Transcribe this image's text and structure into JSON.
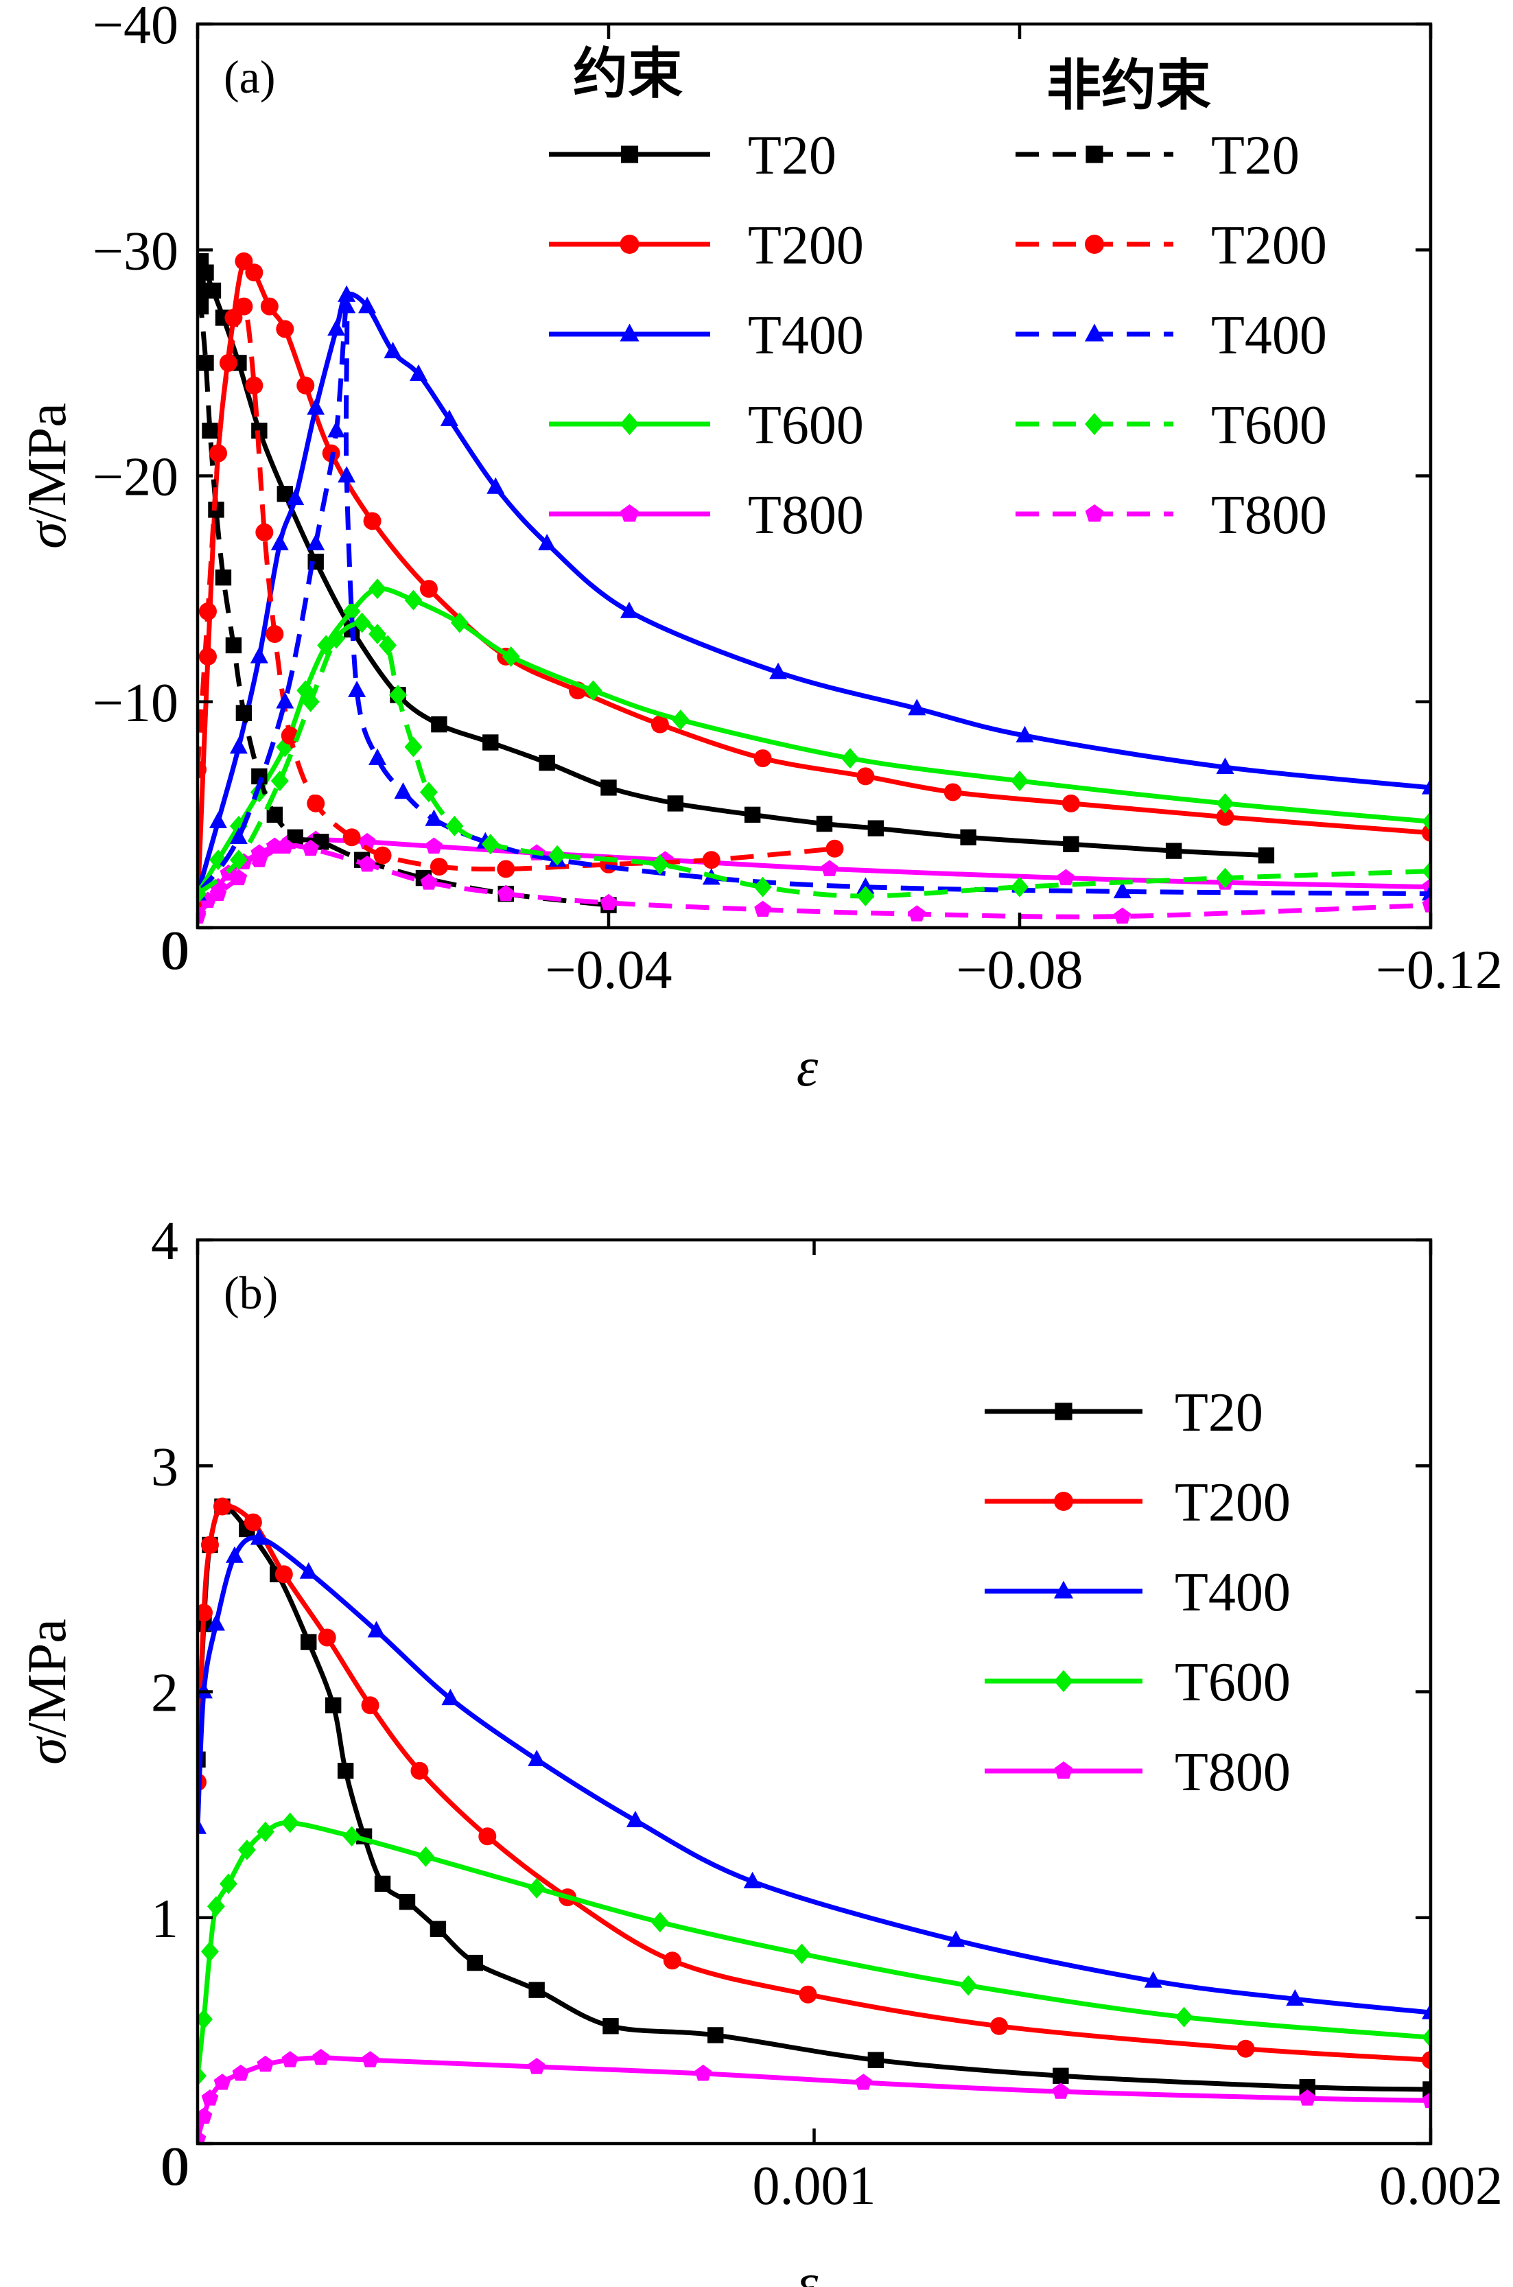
{
  "colors": {
    "T20": "#000000",
    "T200": "#ff0000",
    "T400": "#0000ff",
    "T600": "#00ee00",
    "T800": "#ff00ff"
  },
  "chart_data": [
    {
      "id": "a",
      "type": "line",
      "panel_label": "(a)",
      "xlabel": "ε",
      "ylabel": "σ/MPa",
      "xlim": [
        0,
        -0.12
      ],
      "ylim": [
        0,
        -40
      ],
      "xticks": [
        0,
        -0.04,
        -0.08,
        -0.12
      ],
      "xtick_labels": [
        "0",
        "−0.04",
        "−0.08",
        "−0.12"
      ],
      "yticks": [
        0,
        -10,
        -20,
        -30,
        -40
      ],
      "ytick_labels": [
        "0",
        "−10",
        "−20",
        "−30",
        "−40"
      ],
      "legend_position": "top-right",
      "legend_groups": [
        {
          "title": "约束",
          "style": "solid"
        },
        {
          "title": "非约束",
          "style": "dashed"
        }
      ],
      "series": [
        {
          "name": "T20",
          "group": "约束",
          "style": "solid",
          "marker": "square",
          "color_key": "T20",
          "x": [
            0,
            -0.0003,
            -0.0008,
            -0.0015,
            -0.0025,
            -0.004,
            -0.006,
            -0.0085,
            -0.0115,
            -0.015,
            -0.0195,
            -0.0235,
            -0.0285,
            -0.034,
            -0.04,
            -0.0465,
            -0.054,
            -0.061,
            -0.066,
            -0.075,
            -0.085,
            -0.095,
            -0.104
          ],
          "y": [
            -28.5,
            -29.5,
            -29.0,
            -28.2,
            -27.0,
            -25.0,
            -22.0,
            -19.2,
            -16.2,
            -13.2,
            -10.3,
            -9.0,
            -8.2,
            -7.3,
            -6.2,
            -5.5,
            -5.0,
            -4.6,
            -4.4,
            -4.0,
            -3.7,
            -3.4,
            -3.2
          ]
        },
        {
          "name": "T200",
          "group": "约束",
          "style": "solid",
          "marker": "circle",
          "color_key": "T200",
          "x": [
            0,
            -0.001,
            -0.002,
            -0.0035,
            -0.0045,
            -0.0055,
            -0.007,
            -0.0085,
            -0.0105,
            -0.013,
            -0.017,
            -0.0225,
            -0.03,
            -0.037,
            -0.045,
            -0.055,
            -0.065,
            -0.0735,
            -0.085,
            -0.1,
            -0.12
          ],
          "y": [
            -1.0,
            -12.0,
            -21.0,
            -27.0,
            -29.5,
            -29.0,
            -27.5,
            -26.5,
            -24.0,
            -21.0,
            -18.0,
            -15.0,
            -12.0,
            -10.5,
            -9.0,
            -7.5,
            -6.7,
            -6.0,
            -5.5,
            -4.9,
            -4.2
          ]
        },
        {
          "name": "T400",
          "group": "约束",
          "style": "solid",
          "marker": "triangle",
          "color_key": "T400",
          "x": [
            0,
            -0.002,
            -0.004,
            -0.006,
            -0.008,
            -0.0095,
            -0.0115,
            -0.0135,
            -0.0145,
            -0.0165,
            -0.019,
            -0.0215,
            -0.0245,
            -0.029,
            -0.034,
            -0.042,
            -0.0565,
            -0.07,
            -0.0805,
            -0.1,
            -0.12
          ],
          "y": [
            -1.5,
            -4.7,
            -8.0,
            -12.0,
            -17.0,
            -19.0,
            -23.0,
            -26.5,
            -28.0,
            -27.5,
            -25.5,
            -24.5,
            -22.5,
            -19.5,
            -17.0,
            -14.0,
            -11.3,
            -9.7,
            -8.5,
            -7.1,
            -6.2
          ]
        },
        {
          "name": "T600",
          "group": "约束",
          "style": "solid",
          "marker": "diamond",
          "color_key": "T600",
          "x": [
            0,
            -0.002,
            -0.004,
            -0.006,
            -0.0085,
            -0.0105,
            -0.0125,
            -0.015,
            -0.0175,
            -0.021,
            -0.0255,
            -0.0305,
            -0.0385,
            -0.047,
            -0.0635,
            -0.08,
            -0.1,
            -0.12
          ],
          "y": [
            -1.5,
            -3.0,
            -4.5,
            -6.0,
            -8.0,
            -10.5,
            -12.5,
            -14.0,
            -15.0,
            -14.5,
            -13.5,
            -12.0,
            -10.5,
            -9.2,
            -7.5,
            -6.5,
            -5.5,
            -4.7
          ]
        },
        {
          "name": "T800",
          "group": "约束",
          "style": "solid",
          "marker": "pentagon",
          "color_key": "T800",
          "x": [
            0,
            -0.001,
            -0.002,
            -0.003,
            -0.0045,
            -0.006,
            -0.0075,
            -0.009,
            -0.0115,
            -0.0165,
            -0.023,
            -0.033,
            -0.0455,
            -0.0615,
            -0.0845,
            -0.1,
            -0.12
          ],
          "y": [
            -0.5,
            -1.2,
            -1.8,
            -2.4,
            -2.9,
            -3.3,
            -3.6,
            -3.8,
            -3.9,
            -3.8,
            -3.6,
            -3.3,
            -3.0,
            -2.6,
            -2.2,
            -2.0,
            -1.8
          ]
        },
        {
          "name": "T20",
          "group": "非约束",
          "style": "dashed",
          "marker": "square",
          "color_key": "T20",
          "x": [
            0,
            -0.0003,
            -0.0008,
            -0.0012,
            -0.0018,
            -0.0025,
            -0.0035,
            -0.0045,
            -0.006,
            -0.0075,
            -0.0095,
            -0.012,
            -0.016,
            -0.022,
            -0.03,
            -0.04
          ],
          "y": [
            -28.0,
            -27.5,
            -25.0,
            -22.0,
            -18.5,
            -15.5,
            -12.5,
            -9.5,
            -6.7,
            -5.0,
            -4.0,
            -3.8,
            -3.0,
            -2.2,
            -1.5,
            -1.0
          ]
        },
        {
          "name": "T200",
          "group": "非约束",
          "style": "dashed",
          "marker": "circle",
          "color_key": "T200",
          "x": [
            0,
            -0.001,
            -0.002,
            -0.003,
            -0.0045,
            -0.0055,
            -0.0065,
            -0.0075,
            -0.009,
            -0.0115,
            -0.015,
            -0.018,
            -0.0235,
            -0.03,
            -0.04,
            -0.05,
            -0.062
          ],
          "y": [
            -7.0,
            -14.0,
            -21.0,
            -25.0,
            -27.5,
            -24.0,
            -17.5,
            -13.0,
            -8.5,
            -5.5,
            -4.0,
            -3.2,
            -2.7,
            -2.6,
            -2.8,
            -3.0,
            -3.5
          ]
        },
        {
          "name": "T400",
          "group": "非约束",
          "style": "dashed",
          "marker": "triangle",
          "color_key": "T400",
          "x": [
            0,
            -0.004,
            -0.0085,
            -0.0115,
            -0.0135,
            -0.0145,
            -0.0145,
            -0.0155,
            -0.0175,
            -0.02,
            -0.023,
            -0.028,
            -0.035,
            -0.05,
            -0.065,
            -0.09,
            -0.12
          ],
          "y": [
            -1.5,
            -4.0,
            -10.0,
            -17.0,
            -22.0,
            -27.5,
            -20.0,
            -10.5,
            -7.5,
            -6.0,
            -4.8,
            -3.8,
            -3.0,
            -2.2,
            -1.8,
            -1.6,
            -1.5
          ]
        },
        {
          "name": "T600",
          "group": "非约束",
          "style": "dashed",
          "marker": "diamond",
          "color_key": "T600",
          "x": [
            0,
            -0.004,
            -0.008,
            -0.011,
            -0.0135,
            -0.016,
            -0.0175,
            -0.0185,
            -0.0195,
            -0.021,
            -0.0225,
            -0.025,
            -0.0285,
            -0.035,
            -0.045,
            -0.055,
            -0.065,
            -0.08,
            -0.1,
            -0.12
          ],
          "y": [
            -1.5,
            -3.0,
            -6.5,
            -10.0,
            -12.8,
            -13.5,
            -13.0,
            -12.5,
            -10.3,
            -8.0,
            -6.0,
            -4.5,
            -3.7,
            -3.2,
            -2.8,
            -1.8,
            -1.4,
            -1.8,
            -2.2,
            -2.5
          ]
        },
        {
          "name": "T800",
          "group": "非约束",
          "style": "dashed",
          "marker": "pentagon",
          "color_key": "T800",
          "x": [
            0,
            -0.002,
            -0.004,
            -0.006,
            -0.0085,
            -0.011,
            -0.0165,
            -0.0225,
            -0.03,
            -0.04,
            -0.055,
            -0.07,
            -0.09,
            -0.12
          ],
          "y": [
            -0.6,
            -1.5,
            -2.2,
            -3.0,
            -3.6,
            -3.5,
            -2.8,
            -2.0,
            -1.5,
            -1.1,
            -0.8,
            -0.6,
            -0.5,
            -1.0
          ]
        }
      ]
    },
    {
      "id": "b",
      "type": "line",
      "panel_label": "(b)",
      "xlabel": "ε",
      "ylabel": "σ/MPa",
      "xlim": [
        0,
        0.002
      ],
      "ylim": [
        0,
        4
      ],
      "xticks": [
        0,
        0.001,
        0.002
      ],
      "xtick_labels": [
        "0",
        "0.001",
        "0.002"
      ],
      "yticks": [
        0,
        1,
        2,
        3,
        4
      ],
      "ytick_labels": [
        "0",
        "1",
        "2",
        "3",
        "4"
      ],
      "legend_position": "right",
      "series": [
        {
          "name": "T20",
          "style": "solid",
          "marker": "square",
          "color_key": "T20",
          "x": [
            0,
            1e-05,
            2e-05,
            4e-05,
            8e-05,
            0.00013,
            0.00018,
            0.00022,
            0.00024,
            0.00027,
            0.0003,
            0.00034,
            0.00039,
            0.00045,
            0.00055,
            0.00067,
            0.00084,
            0.0011,
            0.0014,
            0.0018,
            0.002
          ],
          "y": [
            1.7,
            2.3,
            2.65,
            2.82,
            2.72,
            2.52,
            2.22,
            1.94,
            1.65,
            1.36,
            1.15,
            1.07,
            0.95,
            0.8,
            0.68,
            0.52,
            0.48,
            0.37,
            0.3,
            0.25,
            0.24
          ]
        },
        {
          "name": "T200",
          "style": "solid",
          "marker": "circle",
          "color_key": "T200",
          "x": [
            0,
            1e-05,
            2e-05,
            4e-05,
            9e-05,
            0.00014,
            0.00021,
            0.00028,
            0.00036,
            0.00047,
            0.0006,
            0.00077,
            0.00099,
            0.0013,
            0.0017,
            0.002
          ],
          "y": [
            1.6,
            2.35,
            2.65,
            2.82,
            2.75,
            2.52,
            2.24,
            1.94,
            1.65,
            1.36,
            1.09,
            0.81,
            0.66,
            0.52,
            0.42,
            0.37
          ]
        },
        {
          "name": "T400",
          "style": "solid",
          "marker": "triangle",
          "color_key": "T400",
          "x": [
            0,
            1e-05,
            3e-05,
            6e-05,
            0.0001,
            0.00018,
            0.00029,
            0.00041,
            0.00055,
            0.00071,
            0.0009,
            0.00123,
            0.00155,
            0.00178,
            0.002
          ],
          "y": [
            1.4,
            2.0,
            2.3,
            2.6,
            2.68,
            2.53,
            2.27,
            1.97,
            1.7,
            1.43,
            1.16,
            0.9,
            0.72,
            0.64,
            0.58
          ]
        },
        {
          "name": "T600",
          "style": "solid",
          "marker": "diamond",
          "color_key": "T600",
          "x": [
            0,
            1e-05,
            2e-05,
            3e-05,
            5e-05,
            8e-05,
            0.00011,
            0.00015,
            0.00025,
            0.00037,
            0.00055,
            0.00075,
            0.00098,
            0.00125,
            0.0016,
            0.002
          ],
          "y": [
            0.3,
            0.55,
            0.85,
            1.05,
            1.15,
            1.3,
            1.38,
            1.42,
            1.36,
            1.27,
            1.13,
            0.98,
            0.84,
            0.7,
            0.56,
            0.47
          ]
        },
        {
          "name": "T800",
          "style": "solid",
          "marker": "pentagon",
          "color_key": "T800",
          "x": [
            0,
            1e-05,
            2e-05,
            4e-05,
            7e-05,
            0.00011,
            0.00015,
            0.0002,
            0.00028,
            0.00055,
            0.00082,
            0.00108,
            0.0014,
            0.0018,
            0.002
          ],
          "y": [
            0.02,
            0.12,
            0.2,
            0.27,
            0.31,
            0.35,
            0.37,
            0.38,
            0.37,
            0.34,
            0.31,
            0.27,
            0.23,
            0.2,
            0.19
          ]
        }
      ]
    }
  ]
}
